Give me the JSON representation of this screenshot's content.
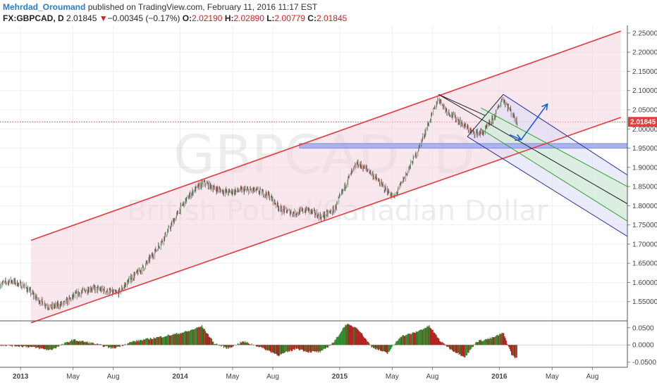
{
  "header": {
    "author": "Mehrdad_Oroumand",
    "published": "published on TradingView.com, February 11, 2016 11:17 EST",
    "symbol": "FX:GBPCAD, D",
    "last": "2.01845",
    "arrow": "▼",
    "change": "−0.00345 (−0.17%)",
    "o_label": "O:",
    "o_value": "2.02190",
    "h_label": "H:",
    "h_value": "2.02890",
    "l_label": "L:",
    "l_value": "2.00779",
    "c_label": "C:",
    "c_value": "2.01845"
  },
  "watermark": {
    "symbol": "GBPCAD, D",
    "name": "British Pound/Canadian Dollar"
  },
  "colors": {
    "up": "#2e8b2e",
    "down": "#b02020",
    "channel": "#e8393c",
    "channel_fill": "#f3d4de",
    "pitchfork": "#2b2f9e",
    "pitchfork_fill": "#d9dcf5",
    "median": "#222222",
    "inner": "#2ea02e",
    "inner_fill": "#d6eed6",
    "zone": "#7f8ed6",
    "arrow": "#1a5fd6",
    "price_tag": "#e8393c"
  },
  "chart_data": {
    "type": "candlestick",
    "symbol": "FX:GBPCAD",
    "timeframe": "D",
    "x_ticks": [
      "2013",
      "May",
      "Aug",
      "2014",
      "May",
      "Aug",
      "2015",
      "May",
      "Aug",
      "2016",
      "May",
      "Aug"
    ],
    "x_tick_dates": [
      "2013-01-01",
      "2013-05-01",
      "2013-08-01",
      "2014-01-01",
      "2014-05-01",
      "2014-08-01",
      "2015-01-01",
      "2015-05-01",
      "2015-08-01",
      "2016-01-01",
      "2016-05-01",
      "2016-08-01"
    ],
    "x_range": [
      "2012-11-15",
      "2016-10-20"
    ],
    "y_range": [
      1.5,
      2.27
    ],
    "y_ticks": [
      "2.25000",
      "2.20000",
      "2.15000",
      "2.10000",
      "2.05000",
      "2.00000",
      "1.95000",
      "1.90000",
      "1.85000",
      "1.80000",
      "1.75000",
      "1.70000",
      "1.65000",
      "1.60000",
      "1.55000"
    ],
    "y_tick_values": [
      2.25,
      2.2,
      2.15,
      2.1,
      2.05,
      2.0,
      1.95,
      1.9,
      1.85,
      1.8,
      1.75,
      1.7,
      1.65,
      1.6,
      1.55
    ],
    "last_price": 2.01845,
    "last_price_label": "2.01845",
    "price_path": [
      [
        "2012-11-15",
        1.595
      ],
      [
        "2012-12-10",
        1.605
      ],
      [
        "2013-01-10",
        1.59
      ],
      [
        "2013-02-10",
        1.555
      ],
      [
        "2013-03-10",
        1.535
      ],
      [
        "2013-04-10",
        1.545
      ],
      [
        "2013-05-10",
        1.57
      ],
      [
        "2013-06-10",
        1.585
      ],
      [
        "2013-07-10",
        1.58
      ],
      [
        "2013-08-10",
        1.57
      ],
      [
        "2013-09-10",
        1.61
      ],
      [
        "2013-10-10",
        1.64
      ],
      [
        "2013-11-10",
        1.69
      ],
      [
        "2013-12-10",
        1.745
      ],
      [
        "2014-01-05",
        1.8
      ],
      [
        "2014-02-01",
        1.84
      ],
      [
        "2014-02-25",
        1.86
      ],
      [
        "2014-03-20",
        1.845
      ],
      [
        "2014-04-20",
        1.835
      ],
      [
        "2014-05-20",
        1.84
      ],
      [
        "2014-06-20",
        1.84
      ],
      [
        "2014-07-20",
        1.83
      ],
      [
        "2014-08-20",
        1.79
      ],
      [
        "2014-09-20",
        1.78
      ],
      [
        "2014-10-20",
        1.79
      ],
      [
        "2014-11-20",
        1.77
      ],
      [
        "2014-12-20",
        1.79
      ],
      [
        "2015-01-20",
        1.87
      ],
      [
        "2015-02-10",
        1.91
      ],
      [
        "2015-03-10",
        1.89
      ],
      [
        "2015-04-10",
        1.85
      ],
      [
        "2015-05-05",
        1.82
      ],
      [
        "2015-06-01",
        1.88
      ],
      [
        "2015-07-01",
        1.95
      ],
      [
        "2015-07-25",
        2.02
      ],
      [
        "2015-08-15",
        2.08
      ],
      [
        "2015-09-01",
        2.05
      ],
      [
        "2015-10-01",
        2.02
      ],
      [
        "2015-11-01",
        1.99
      ],
      [
        "2015-11-25",
        1.99
      ],
      [
        "2015-12-20",
        2.03
      ],
      [
        "2016-01-08",
        2.08
      ],
      [
        "2016-01-25",
        2.05
      ],
      [
        "2016-02-11",
        2.018
      ]
    ],
    "oscillator": {
      "y_range": [
        -0.065,
        0.07
      ],
      "y_ticks": [
        "0.0500",
        "0.0000",
        "-0.0500"
      ],
      "y_tick_values": [
        0.05,
        0.0,
        -0.05
      ],
      "path": [
        [
          "2012-11-15",
          0.0
        ],
        [
          "2013-01-20",
          -0.005
        ],
        [
          "2013-03-10",
          -0.015
        ],
        [
          "2013-05-01",
          0.015
        ],
        [
          "2013-06-15",
          0.005
        ],
        [
          "2013-08-01",
          -0.01
        ],
        [
          "2013-09-15",
          0.01
        ],
        [
          "2013-11-01",
          0.02
        ],
        [
          "2013-12-15",
          0.03
        ],
        [
          "2014-01-20",
          0.04
        ],
        [
          "2014-02-20",
          0.055
        ],
        [
          "2014-03-20",
          0.005
        ],
        [
          "2014-04-20",
          -0.01
        ],
        [
          "2014-05-25",
          0.01
        ],
        [
          "2014-07-01",
          -0.005
        ],
        [
          "2014-08-15",
          -0.03
        ],
        [
          "2014-09-25",
          -0.01
        ],
        [
          "2014-10-20",
          -0.02
        ],
        [
          "2014-11-20",
          -0.02
        ],
        [
          "2014-12-20",
          0.01
        ],
        [
          "2015-01-15",
          0.06
        ],
        [
          "2015-02-10",
          0.05
        ],
        [
          "2015-03-15",
          -0.005
        ],
        [
          "2015-04-20",
          -0.025
        ],
        [
          "2015-05-20",
          0.025
        ],
        [
          "2015-06-20",
          0.035
        ],
        [
          "2015-07-25",
          0.055
        ],
        [
          "2015-08-20",
          0.01
        ],
        [
          "2015-09-15",
          -0.015
        ],
        [
          "2015-10-15",
          -0.035
        ],
        [
          "2015-11-10",
          0.01
        ],
        [
          "2015-12-15",
          0.02
        ],
        [
          "2016-01-10",
          0.035
        ],
        [
          "2016-01-30",
          -0.03
        ],
        [
          "2016-02-11",
          -0.04
        ]
      ]
    },
    "drawings": {
      "channel": {
        "upper": [
          [
            "2013-01-25",
            1.71
          ],
          [
            "2016-10-05",
            2.255
          ]
        ],
        "lower": [
          [
            "2013-01-25",
            1.495
          ],
          [
            "2016-10-05",
            2.03
          ]
        ]
      },
      "pitchfork": {
        "median": [
          [
            "2015-08-15",
            2.09
          ],
          [
            "2016-10-20",
            1.805
          ]
        ],
        "upper": [
          [
            "2016-01-10",
            2.09
          ],
          [
            "2016-10-20",
            1.88
          ]
        ],
        "lower": [
          [
            "2015-10-20",
            1.98
          ],
          [
            "2016-10-20",
            1.72
          ]
        ],
        "inner_upper": [
          [
            "2015-11-20",
            2.055
          ],
          [
            "2016-10-20",
            1.85
          ]
        ],
        "inner_lower": [
          [
            "2015-11-20",
            2.0
          ],
          [
            "2016-10-20",
            1.76
          ]
        ]
      },
      "support_zone": {
        "from": "2014-10-01",
        "to": "2016-10-20",
        "top": 1.962,
        "bottom": 1.95
      },
      "arrows": [
        [
          [
            "2016-01-25",
            1.985
          ],
          [
            "2016-02-20",
            1.972
          ]
        ],
        [
          [
            "2016-02-20",
            1.972
          ],
          [
            "2016-04-20",
            2.065
          ]
        ]
      ]
    }
  }
}
